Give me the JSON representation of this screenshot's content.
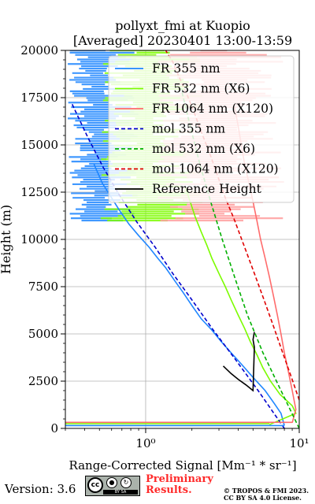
{
  "chart_data": {
    "type": "line",
    "title": "pollyxt_fmi at Kuopio",
    "subtitle": "[Averaged] 20230401 13:00-13:59",
    "xlabel": "Range-Corrected Signal [Mm⁻¹ * sr⁻¹]",
    "ylabel": "Height (m)",
    "xscale": "log",
    "xlim": [
      0.3,
      10
    ],
    "ylim": [
      0,
      20000
    ],
    "x_ticks": [
      {
        "value": 1,
        "label": "10⁰"
      },
      {
        "value": 10,
        "label": "10¹"
      }
    ],
    "y_ticks": [
      0,
      2500,
      5000,
      7500,
      10000,
      12500,
      15000,
      17500,
      20000
    ],
    "grid": true,
    "legend_position": "top-right",
    "legend": [
      "FR 355 nm",
      "FR 532 nm (X6)",
      "FR 1064 nm (X120)",
      "mol 355 nm",
      "mol 532 nm (X6)",
      "mol 1064 nm (X120)",
      "Reference Height"
    ],
    "series": [
      {
        "name": "FR 355 nm",
        "color": "#1f86ff",
        "style": "solid",
        "x": [
          8.0,
          7.6,
          6.9,
          6.0,
          5.0,
          4.2,
          3.6,
          3.1,
          2.7,
          2.3,
          2.0,
          1.75,
          1.55,
          1.35,
          1.2,
          1.05,
          0.9,
          0.78,
          0.68,
          0.6,
          0.52,
          0.46
        ],
        "y": [
          150,
          800,
          1300,
          2000,
          2700,
          3400,
          4000,
          4600,
          5200,
          5800,
          6500,
          7200,
          7800,
          8500,
          9000,
          9600,
          10200,
          10800,
          11500,
          12200,
          13000,
          14000
        ]
      },
      {
        "name": "FR 532 nm (X6)",
        "color": "#7cfc00",
        "style": "solid",
        "x": [
          6.4,
          9.5,
          9.0,
          7.5,
          6.5,
          5.8,
          5.3,
          4.8,
          4.4,
          4.0,
          3.6,
          3.3,
          3.0,
          2.7,
          2.5,
          2.3,
          2.1,
          1.95,
          1.8
        ],
        "y": [
          200,
          800,
          1200,
          1800,
          2500,
          3200,
          3900,
          4600,
          5300,
          6000,
          6800,
          7500,
          8200,
          9000,
          9700,
          10400,
          11200,
          12000,
          12800
        ]
      },
      {
        "name": "FR 1064 nm (X120)",
        "color": "#ff6b6b",
        "style": "solid",
        "x": [
          9.0,
          9.5,
          9.0,
          8.5,
          8.0,
          7.6,
          7.2,
          6.8,
          6.4,
          6.0,
          5.6,
          5.3,
          5.0,
          4.7,
          4.4,
          4.2,
          4.0,
          3.8
        ],
        "y": [
          300,
          1000,
          2000,
          3000,
          4000,
          5000,
          6000,
          7000,
          8000,
          9000,
          10000,
          11000,
          12000,
          13000,
          14000,
          15000,
          16000,
          17000
        ]
      },
      {
        "name": "mol 355 nm",
        "color": "#0000cc",
        "style": "dashed",
        "x": [
          8.0,
          5.4,
          3.8,
          2.7,
          2.0,
          1.5,
          1.15,
          0.88,
          0.68,
          0.53,
          0.42,
          0.33
        ],
        "y": [
          0,
          2000,
          3700,
          5300,
          6800,
          8200,
          9600,
          10900,
          12300,
          13800,
          15400,
          17200
        ]
      },
      {
        "name": "mol 532 nm (X6)",
        "color": "#00b000",
        "style": "dashed",
        "x": [
          10.0,
          7.6,
          5.8,
          4.6,
          3.8,
          3.15,
          2.65,
          2.25,
          1.95,
          1.7
        ],
        "y": [
          0,
          2000,
          4000,
          6000,
          8000,
          10000,
          12000,
          14000,
          16000,
          18000
        ]
      },
      {
        "name": "mol 1064 nm (X120)",
        "color": "#e00000",
        "style": "dashed",
        "x": [
          10.0,
          8.9,
          7.8,
          6.8,
          5.9,
          5.1,
          4.4,
          3.8,
          3.3,
          2.9,
          2.6,
          2.3,
          2.05,
          1.85,
          1.65,
          1.5,
          1.35
        ],
        "y": [
          1500,
          2700,
          4000,
          5400,
          6800,
          8200,
          9600,
          11000,
          12200,
          13500,
          14600,
          15700,
          16800,
          17700,
          18600,
          19400,
          20000
        ]
      },
      {
        "name": "Reference Height",
        "color": "#000000",
        "style": "solid",
        "x": [
          3.2,
          3.6,
          4.0,
          4.5,
          5.0,
          5.1,
          5.0,
          5.1
        ],
        "y": [
          3300,
          2900,
          2600,
          2300,
          2000,
          4300,
          4700,
          5100
        ]
      }
    ]
  },
  "footer": {
    "version": "Version: 3.6",
    "license_badge": {
      "cc": "cc",
      "by": "BY",
      "sa": "SA"
    },
    "preliminary": "Preliminary",
    "results": "Results.",
    "copyright_1": "© TROPOS & FMI 2023.",
    "copyright_2": "CC BY SA 4.0 License."
  }
}
